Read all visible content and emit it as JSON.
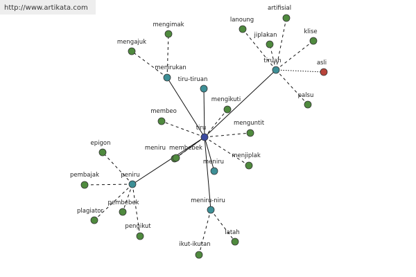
{
  "header": {
    "url": "http://www.artikata.com"
  },
  "nodes": [
    {
      "label": "tiru"
    },
    {
      "label": "tiruan"
    },
    {
      "label": "menirukan"
    },
    {
      "label": "tiru-tiruan"
    },
    {
      "label": "peniru"
    },
    {
      "label": "meniru-niru"
    },
    {
      "label": "meniru"
    },
    {
      "label": "mengimak"
    },
    {
      "label": "mengajuk"
    },
    {
      "label": "lanoung"
    },
    {
      "label": "jiplakan"
    },
    {
      "label": "artifisial"
    },
    {
      "label": "klise"
    },
    {
      "label": "asli"
    },
    {
      "label": "palsu"
    },
    {
      "label": "mengikuti"
    },
    {
      "label": "membeo"
    },
    {
      "label": "menguntit"
    },
    {
      "label": "meniru"
    },
    {
      "label": "membebek"
    },
    {
      "label": "menjiplak"
    },
    {
      "label": "epigon"
    },
    {
      "label": "pembajak"
    },
    {
      "label": "pembebek"
    },
    {
      "label": "plagiator"
    },
    {
      "label": "pengikut"
    },
    {
      "label": "latah"
    },
    {
      "label": "ikut-ikutan"
    }
  ]
}
